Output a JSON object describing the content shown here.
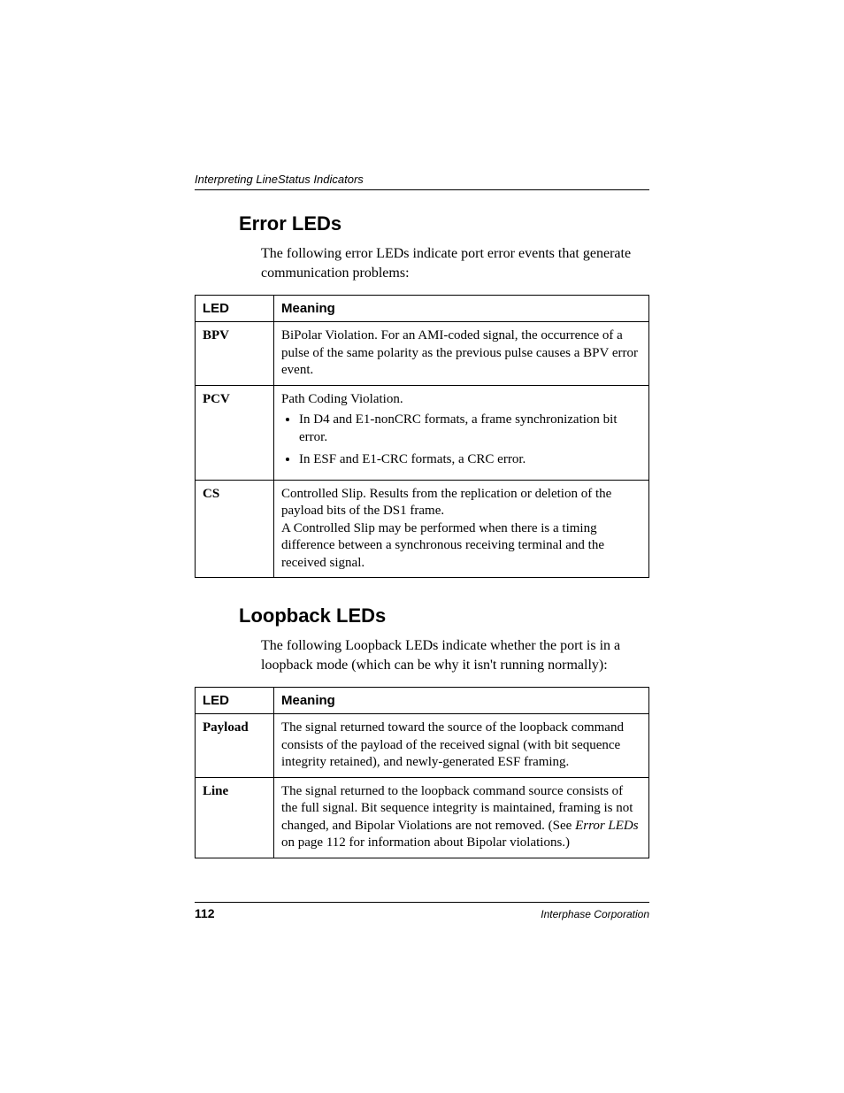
{
  "runningHead": "Interpreting LineStatus Indicators",
  "sections": {
    "error": {
      "heading": "Error LEDs",
      "intro": "The following error LEDs indicate port error events that generate communication problems:",
      "table": {
        "headers": [
          "LED",
          "Meaning"
        ],
        "rows": [
          {
            "led": "BPV",
            "meaning_text": "BiPolar Violation. For an AMI-coded signal, the occurrence of a pulse of the same polarity as the previous pulse causes a BPV error event."
          },
          {
            "led": "PCV",
            "meaning_text": "Path Coding Violation.",
            "bullets": [
              "In D4 and E1-nonCRC formats, a frame synchronization bit error.",
              "In ESF and E1-CRC formats, a CRC error."
            ]
          },
          {
            "led": "CS",
            "meaning_text": "Controlled Slip. Results from the replication or deletion of the payload bits of the DS1 frame.",
            "meaning_text2": "A Controlled Slip may be performed when there is a timing difference between a synchronous receiving terminal and the received signal."
          }
        ]
      }
    },
    "loopback": {
      "heading": "Loopback LEDs",
      "intro": "The following Loopback LEDs indicate whether the port is in a loopback mode (which can be why it isn't running normally):",
      "table": {
        "headers": [
          "LED",
          "Meaning"
        ],
        "rows": [
          {
            "led": "Payload",
            "meaning_text": "The signal returned toward the source of the loopback command consists of the payload of the received signal (with bit sequence integrity retained), and newly-generated ESF framing."
          },
          {
            "led": "Line",
            "meaning_pre": "The signal returned to the loopback command source consists of the full signal. Bit sequence integrity is maintained, framing is not changed, and Bipolar Violations are not removed. (See ",
            "meaning_italic": "Error LEDs",
            "meaning_post": " on page 112 for information about Bipolar violations.)"
          }
        ]
      }
    }
  },
  "footer": {
    "pageNumber": "112",
    "org": "Interphase Corporation"
  }
}
